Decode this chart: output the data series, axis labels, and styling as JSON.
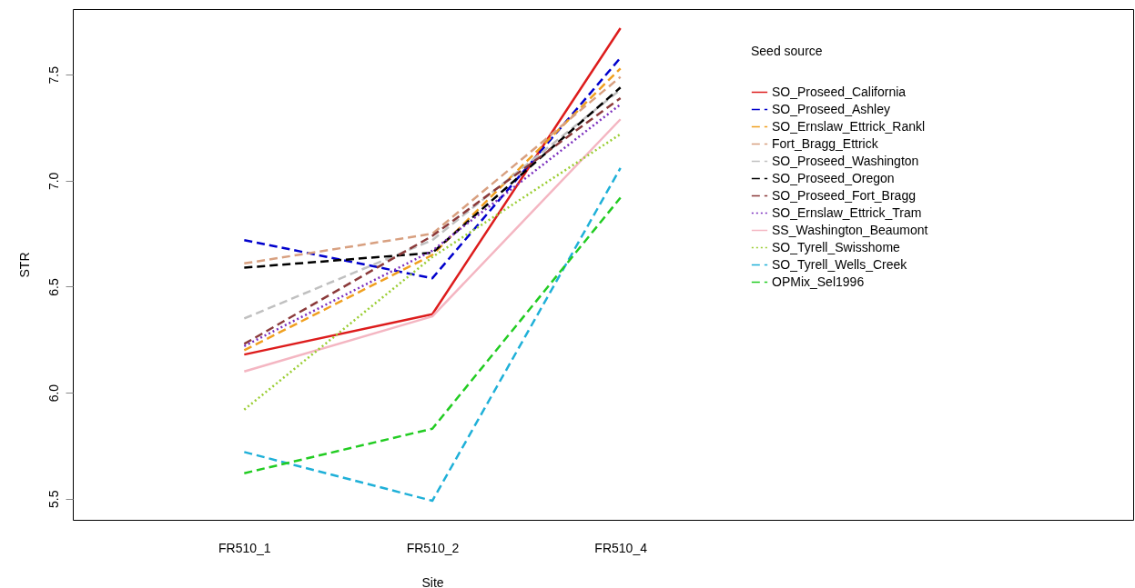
{
  "chart_data": {
    "type": "line",
    "xlabel": "Site",
    "ylabel": "STR",
    "legend_title": "Seed source",
    "legend": "top right",
    "grid": false,
    "categories": [
      "FR510_1",
      "FR510_2",
      "FR510_4"
    ],
    "ylim": [
      5.4,
      7.81
    ],
    "yticks": [
      5.5,
      {
        "value": 6,
        "label": "6.0"
      },
      6.5,
      {
        "value": 7,
        "label": "7.0"
      },
      7.5
    ],
    "series": [
      {
        "name": "SO_Proseed_California",
        "color": "#dd1c1c",
        "line_style": "solid",
        "values": [
          6.18,
          6.37,
          7.72
        ]
      },
      {
        "name": "SO_Proseed_Ashley",
        "color": "#0000cc",
        "line_style": "dashed",
        "values": [
          6.72,
          6.54,
          7.58
        ]
      },
      {
        "name": "SO_Ernslaw_Ettrick_Rankl",
        "color": "#f0a020",
        "line_style": "dashed",
        "values": [
          6.2,
          6.65,
          7.53
        ]
      },
      {
        "name": "Fort_Bragg_Ettrick",
        "color": "#d8a080",
        "line_style": "dashed",
        "values": [
          6.61,
          6.75,
          7.49
        ]
      },
      {
        "name": "SO_Proseed_Washington",
        "color": "#c0c0c0",
        "line_style": "dashed",
        "values": [
          6.35,
          6.72,
          7.43
        ]
      },
      {
        "name": "SO_Proseed_Oregon",
        "color": "#000000",
        "line_style": "dashed",
        "values": [
          6.59,
          6.66,
          7.44
        ]
      },
      {
        "name": "SO_Proseed_Fort_Bragg",
        "color": "#8b3a3a",
        "line_style": "dashed",
        "values": [
          6.23,
          6.74,
          7.39
        ]
      },
      {
        "name": "SO_Ernslaw_Ettrick_Tram",
        "color": "#7b2fbe",
        "line_style": "dotted",
        "values": [
          6.22,
          6.67,
          7.36
        ]
      },
      {
        "name": "SS_Washington_Beaumont",
        "color": "#f4b6c2",
        "line_style": "solid",
        "values": [
          6.1,
          6.36,
          7.29
        ]
      },
      {
        "name": "SO_Tyrell_Swisshome",
        "color": "#9acd32",
        "line_style": "dotted",
        "values": [
          5.92,
          6.64,
          7.22
        ]
      },
      {
        "name": "SO_Tyrell_Wells_Creek",
        "color": "#1fb0d8",
        "line_style": "dashed",
        "values": [
          5.72,
          5.49,
          7.06
        ]
      },
      {
        "name": "OPMix_Sel1996",
        "color": "#22cc22",
        "line_style": "dashed",
        "values": [
          5.62,
          5.83,
          6.92
        ]
      }
    ]
  }
}
